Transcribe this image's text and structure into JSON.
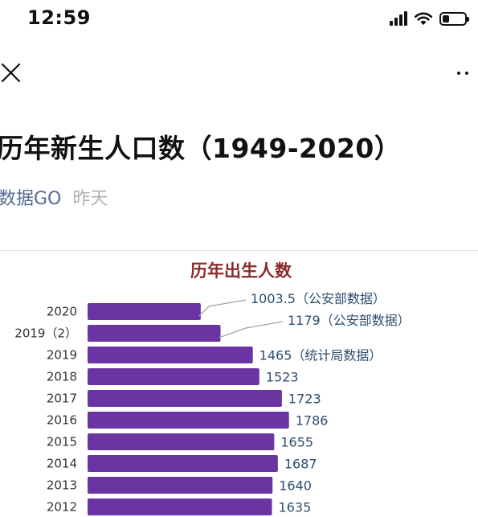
{
  "status_bar": {
    "time": "12:59"
  },
  "article": {
    "title": "历年新生人口数（1949-2020）",
    "author": "数据GO",
    "date": "昨天"
  },
  "chart_data": {
    "type": "bar",
    "orientation": "horizontal",
    "title": "历年出生人数",
    "categories": [
      "2020",
      "2019（2）",
      "2019",
      "2018",
      "2017",
      "2016",
      "2015",
      "2014",
      "2013",
      "2012"
    ],
    "values": [
      1003.5,
      1179,
      1465,
      1523,
      1723,
      1786,
      1655,
      1687,
      1640,
      1635
    ],
    "value_labels": [
      "1003.5（公安部数据）",
      "1179（公安部数据）",
      "1465（统计局数据）",
      "1523",
      "1723",
      "1786",
      "1655",
      "1687",
      "1640",
      "1635"
    ],
    "bar_color": "#6a34a3",
    "title_color": "#8b2b2b",
    "label_color": "#2c4e6e"
  }
}
